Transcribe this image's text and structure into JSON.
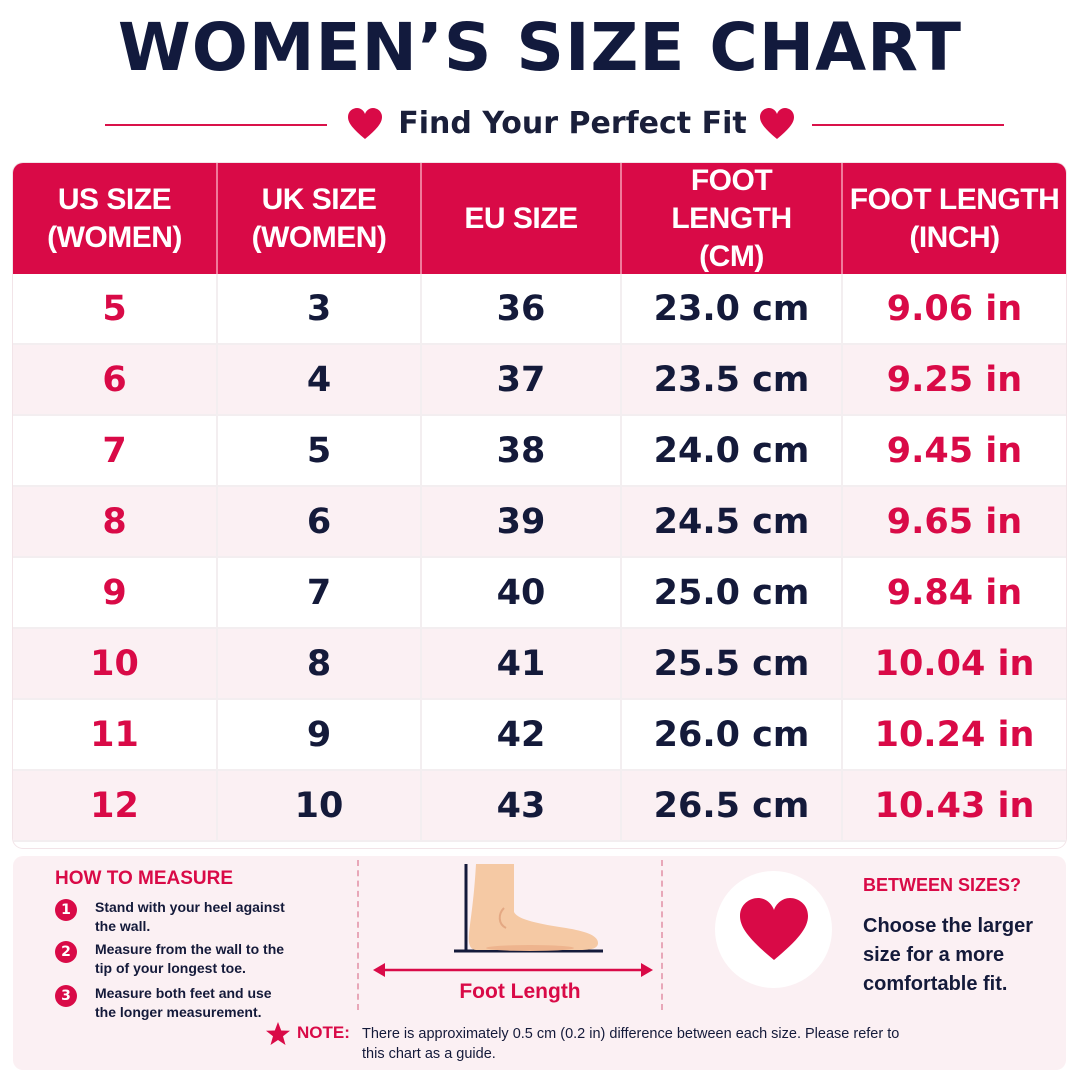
{
  "header": {
    "title": "WOMEN’S SIZE CHART",
    "subtitle": "Find Your Perfect Fit"
  },
  "colors": {
    "accent": "#d90a47",
    "text": "#141a3a",
    "row_alt": "#fbf0f3",
    "foot_skin": "#f5c9a4"
  },
  "table": {
    "headers": [
      "US SIZE\n(WOMEN)",
      "UK SIZE\n(WOMEN)",
      "EU SIZE",
      "FOOT LENGTH\n(CM)",
      "FOOT LENGTH\n(INCH)"
    ],
    "rows": [
      [
        "5",
        "3",
        "36",
        "23.0 cm",
        "9.06 in"
      ],
      [
        "6",
        "4",
        "37",
        "23.5 cm",
        "9.25 in"
      ],
      [
        "7",
        "5",
        "38",
        "24.0 cm",
        "9.45 in"
      ],
      [
        "8",
        "6",
        "39",
        "24.5 cm",
        "9.65 in"
      ],
      [
        "9",
        "7",
        "40",
        "25.0 cm",
        "9.84 in"
      ],
      [
        "10",
        "8",
        "41",
        "25.5 cm",
        "10.04 in"
      ],
      [
        "11",
        "9",
        "42",
        "26.0 cm",
        "10.24 in"
      ],
      [
        "12",
        "10",
        "43",
        "26.5 cm",
        "10.43 in"
      ]
    ]
  },
  "how_to_measure": {
    "title": "HOW TO MEASURE",
    "steps": [
      {
        "num": "1",
        "text": "Stand with your heel against the wall."
      },
      {
        "num": "2",
        "text": "Measure from the wall to the tip of your longest toe."
      },
      {
        "num": "3",
        "text": "Measure both feet and use the longer measurement."
      }
    ]
  },
  "illustration": {
    "label": "Foot Length",
    "icon": "foot-icon"
  },
  "between_sizes": {
    "title": "BETWEEN SIZES?",
    "text": "Choose the larger size for a more comfortable fit."
  },
  "note": {
    "label": "NOTE:",
    "text": "There is approximately 0.5 cm (0.2 in) difference between each size. Please refer to this chart as a guide."
  }
}
